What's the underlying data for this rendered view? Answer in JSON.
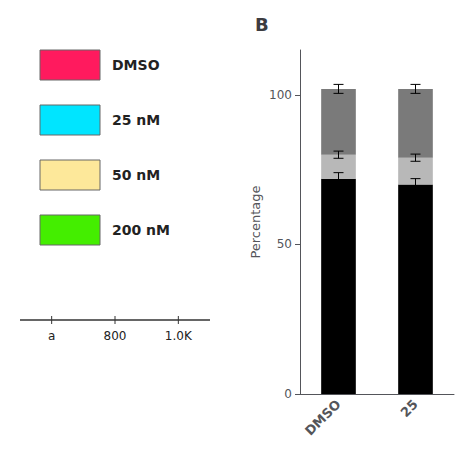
{
  "chart_data": {
    "type": "bar",
    "title": "B",
    "categories": [
      "DMSO",
      "25"
    ],
    "stacked": true,
    "ylabel": "Percentage",
    "ylim": [
      0,
      115
    ],
    "yticks": [
      0,
      50,
      100
    ],
    "grid": false,
    "series": [
      {
        "color": "#000000",
        "values": [
          72,
          70
        ],
        "errors": [
          2.0,
          2.0
        ]
      },
      {
        "color": "#b8b8b8",
        "values": [
          8,
          9
        ],
        "errors": [
          1.2,
          1.2
        ]
      },
      {
        "color": "#7a7a7a",
        "values": [
          22,
          23
        ],
        "errors": [
          1.5,
          1.5
        ]
      }
    ],
    "annotations": [
      {
        "text": "DMSO",
        "color": "#ff1a5e"
      },
      {
        "text": "25 nM",
        "color": "#00e5ff"
      },
      {
        "text": "50 nM",
        "color": "#fde89a"
      },
      {
        "text": "200 nM",
        "color": "#44ee00"
      },
      {
        "text": "a"
      },
      {
        "text": "800"
      },
      {
        "text": "1.0K"
      }
    ]
  }
}
